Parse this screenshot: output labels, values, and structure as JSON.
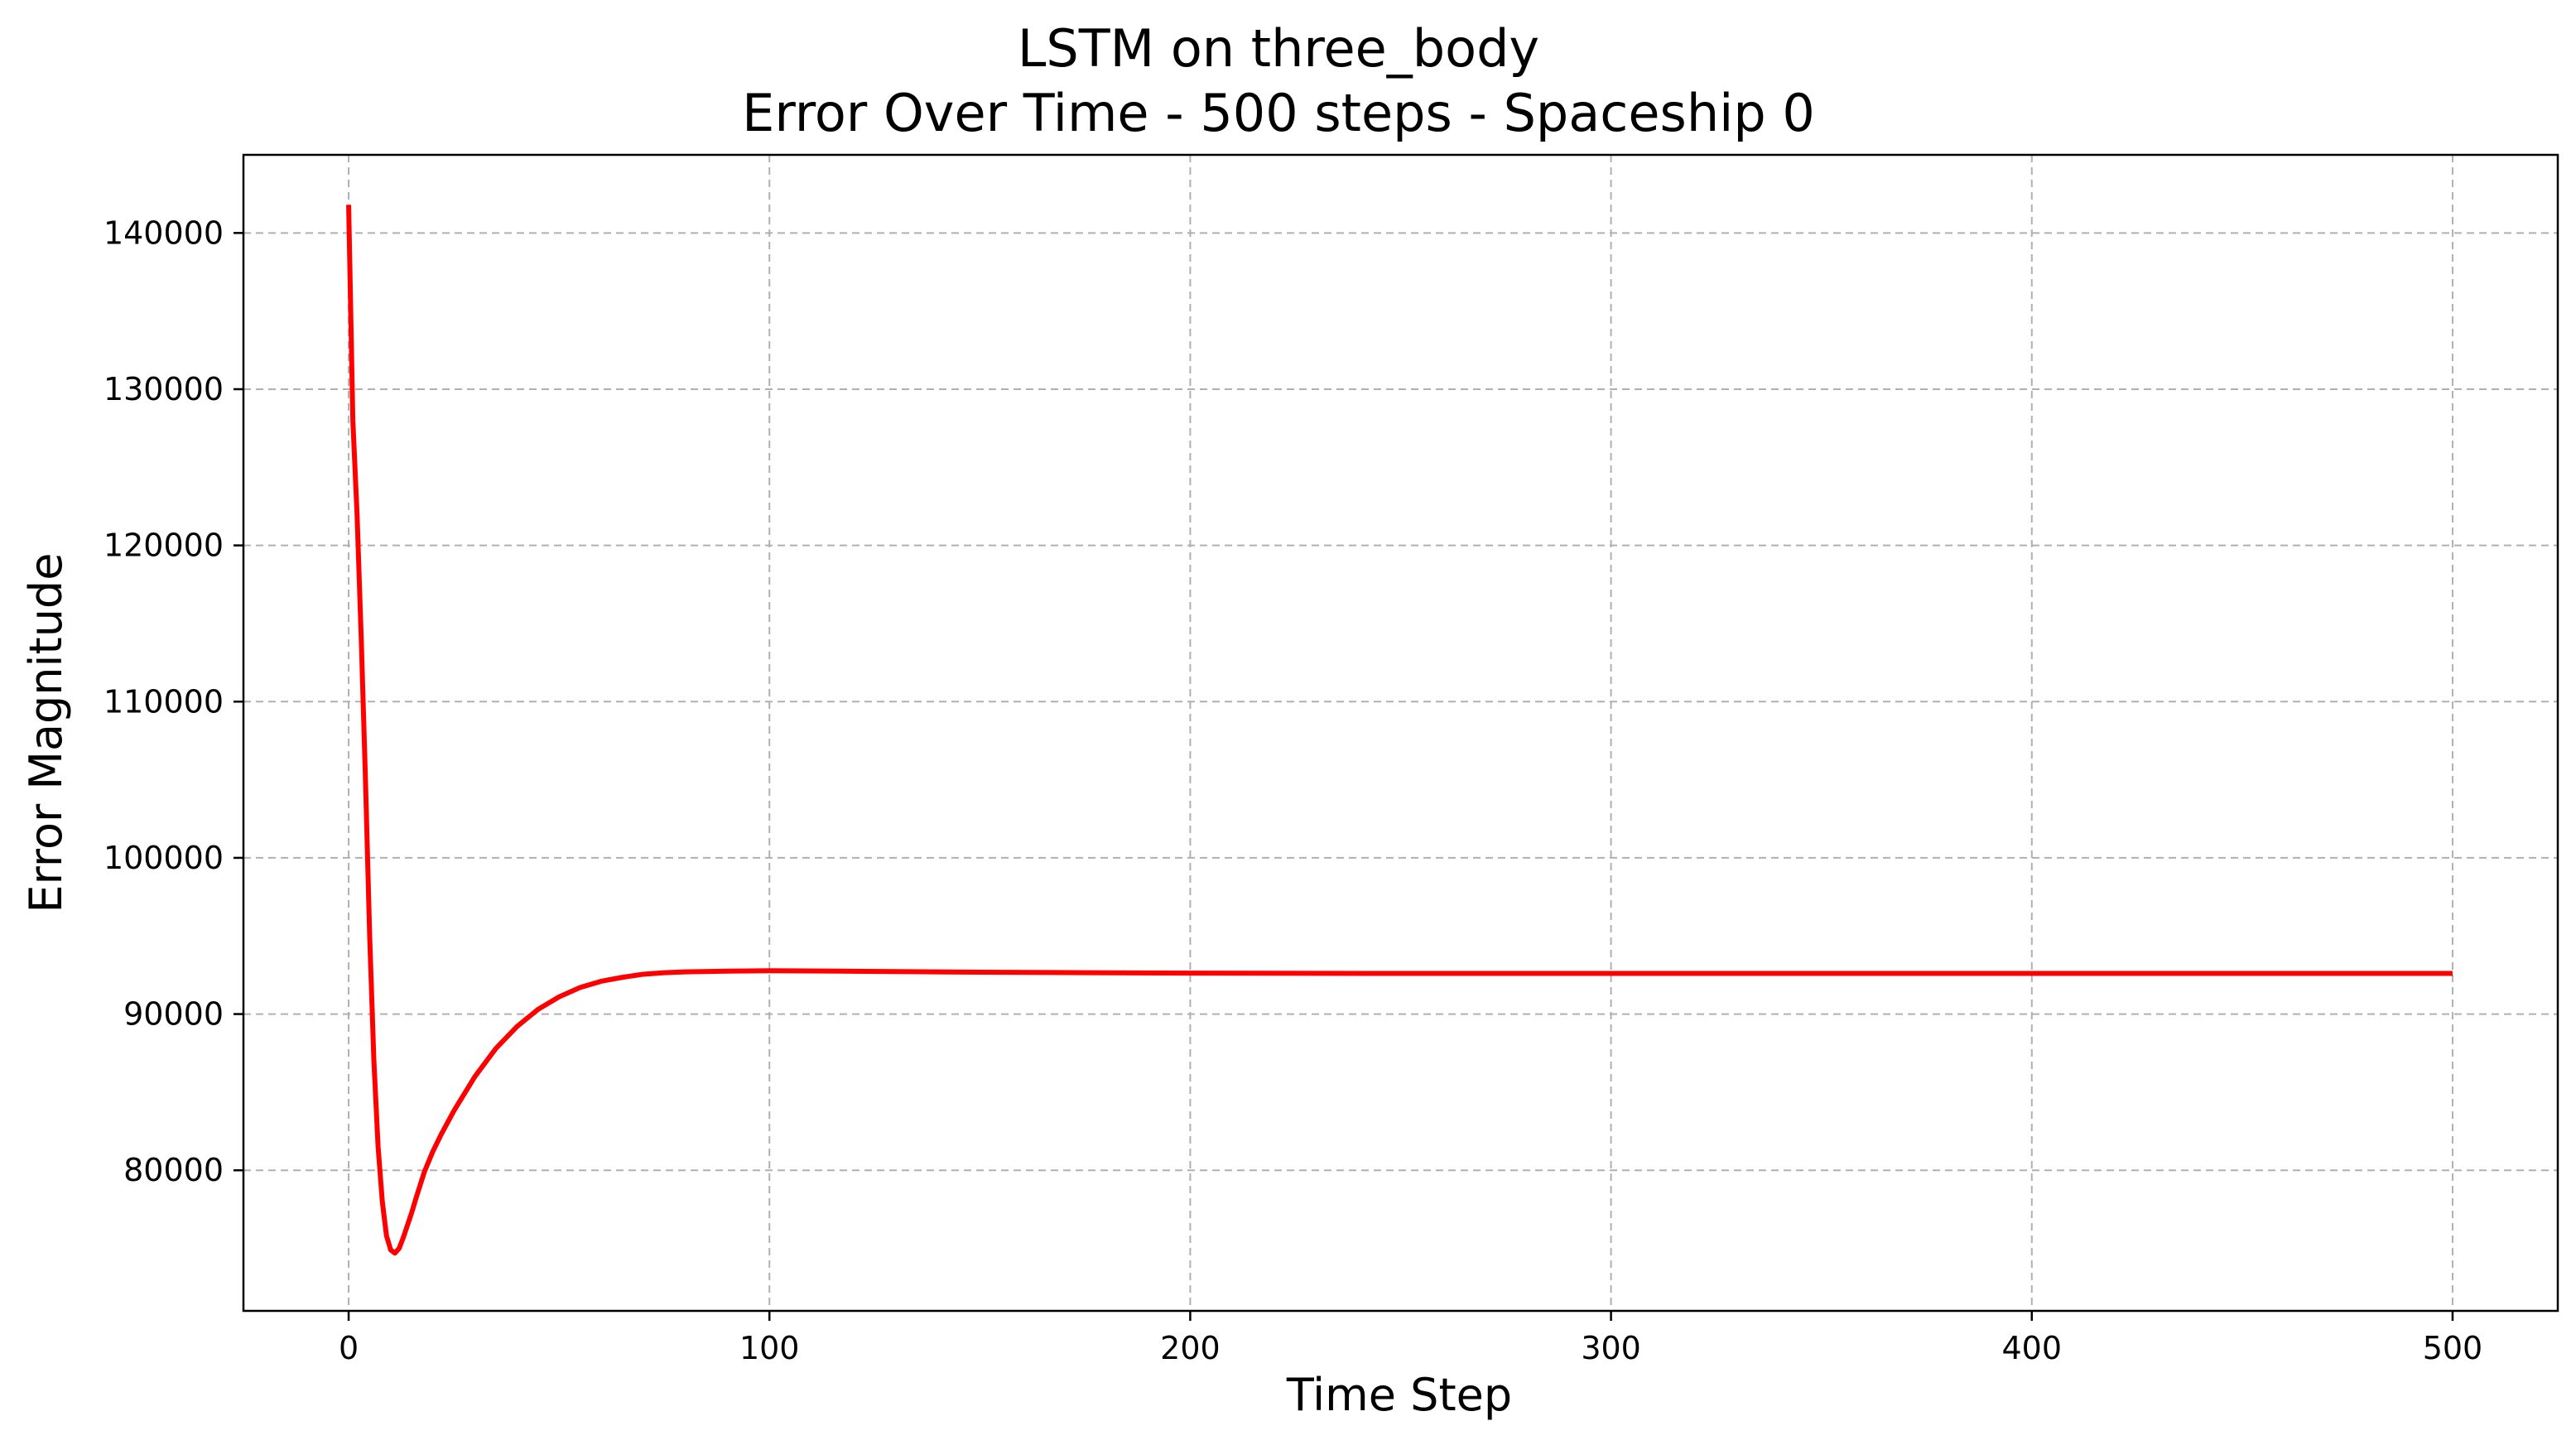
{
  "chart_data": {
    "type": "line",
    "title": "LSTM on three_body",
    "subtitle": "Error Over Time - 500 steps - Spaceship 0",
    "xlabel": "Time Step",
    "ylabel": "Error Magnitude",
    "xlim": [
      -25,
      525
    ],
    "ylim": [
      71000,
      145000
    ],
    "xticks": [
      0,
      100,
      200,
      300,
      400,
      500
    ],
    "yticks": [
      80000,
      90000,
      100000,
      110000,
      120000,
      130000,
      140000
    ],
    "grid": true,
    "legend": "none",
    "series": [
      {
        "color": "#ff0000",
        "x": [
          0,
          1,
          2,
          3,
          4,
          5,
          6,
          7,
          8,
          9,
          10,
          11,
          12,
          13,
          14,
          15,
          16,
          18,
          20,
          22,
          25,
          30,
          35,
          40,
          45,
          50,
          55,
          60,
          65,
          70,
          75,
          80,
          90,
          100,
          110,
          120,
          130,
          150,
          175,
          200,
          250,
          300,
          350,
          400,
          450,
          500
        ],
        "y": [
          141800,
          128000,
          122000,
          114000,
          105000,
          95000,
          87000,
          81500,
          78000,
          75800,
          74900,
          74700,
          75000,
          75700,
          76500,
          77300,
          78200,
          79900,
          81200,
          82300,
          83800,
          86000,
          87800,
          89200,
          90300,
          91100,
          91700,
          92100,
          92350,
          92550,
          92650,
          92700,
          92750,
          92770,
          92760,
          92740,
          92720,
          92680,
          92650,
          92620,
          92600,
          92600,
          92600,
          92600,
          92600,
          92600
        ]
      }
    ]
  }
}
